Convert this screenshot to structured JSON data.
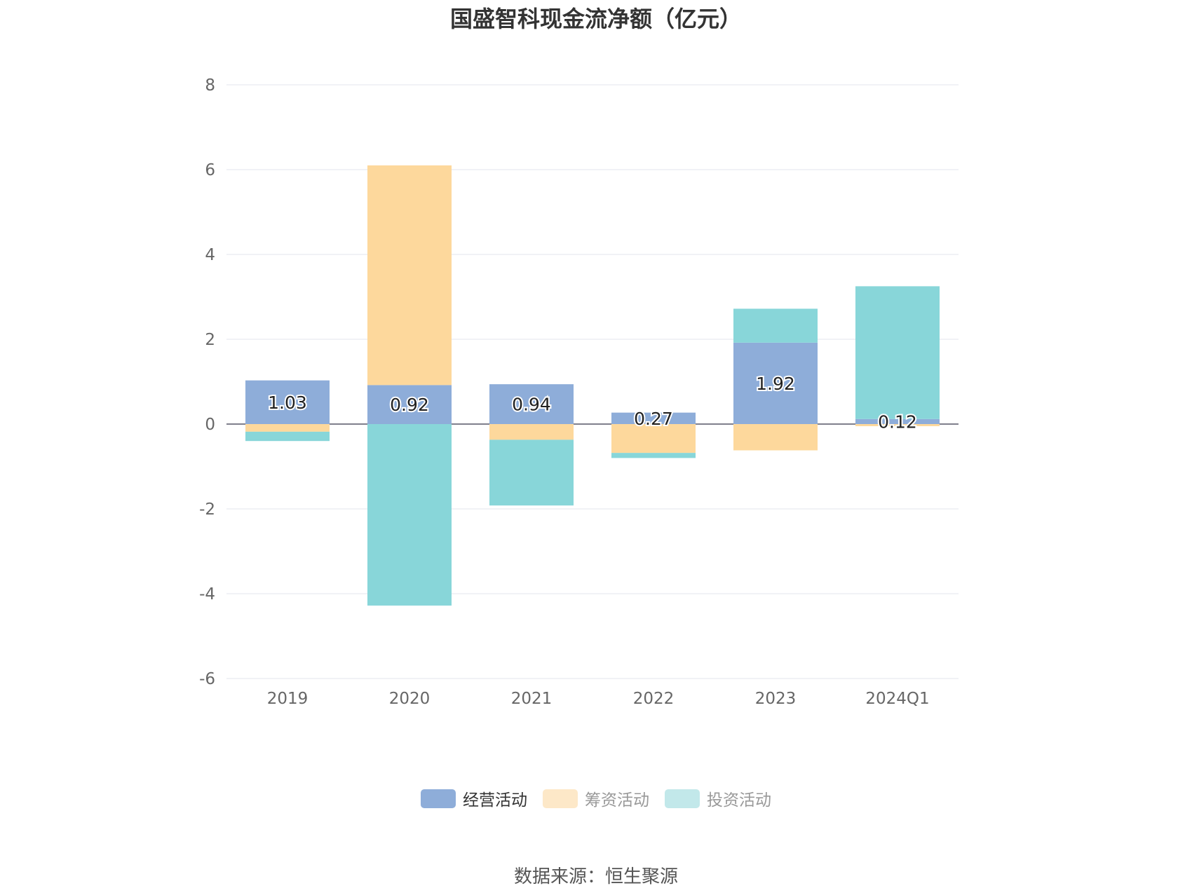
{
  "chart_data": {
    "type": "bar",
    "stacked": true,
    "title": "国盛智科现金流净额（亿元）",
    "categories": [
      "2019",
      "2020",
      "2021",
      "2022",
      "2023",
      "2024Q1"
    ],
    "ylim": [
      -6,
      8
    ],
    "yticks": [
      8,
      6,
      4,
      2,
      0,
      -2,
      -4,
      -6
    ],
    "grid": true,
    "legend_position": "bottom",
    "series": [
      {
        "name": "经营活动",
        "color": "#8eadd9",
        "values": [
          1.03,
          0.92,
          0.94,
          0.27,
          1.92,
          0.12
        ]
      },
      {
        "name": "筹资活动",
        "color": "#fdd89c",
        "values": [
          -0.18,
          5.18,
          -0.37,
          -0.68,
          -0.62,
          -0.05
        ]
      },
      {
        "name": "投资活动",
        "color": "#88d6d9",
        "values": [
          -0.22,
          -4.28,
          -1.55,
          -0.12,
          0.8,
          3.13
        ]
      }
    ],
    "data_labels": [
      "1.03",
      "0.92",
      "0.94",
      "0.27",
      "1.92",
      "0.12"
    ]
  },
  "legend": [
    {
      "label": "经营活动",
      "color": "#8eadd9"
    },
    {
      "label": "筹资活动",
      "color": "#fde8c8"
    },
    {
      "label": "投资活动",
      "color": "#c2e8ea"
    }
  ],
  "source": "数据来源：恒生聚源"
}
